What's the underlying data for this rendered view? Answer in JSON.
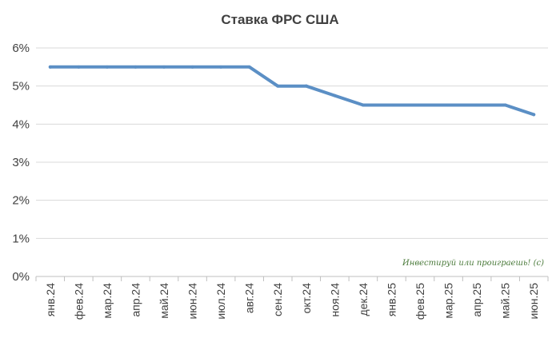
{
  "chart_data": {
    "type": "line",
    "title": "Ставка ФРС США",
    "xlabel": "",
    "ylabel": "",
    "ylim": [
      0,
      6
    ],
    "y_ticks": [
      "0%",
      "1%",
      "2%",
      "3%",
      "4%",
      "5%",
      "6%"
    ],
    "categories": [
      "янв.24",
      "фев.24",
      "мар.24",
      "апр.24",
      "май.24",
      "июн.24",
      "июл.24",
      "авг.24",
      "сен.24",
      "окт.24",
      "ноя.24",
      "дек.24",
      "янв.25",
      "фев.25",
      "мар.25",
      "апр.25",
      "май.25",
      "июн.25"
    ],
    "series": [
      {
        "name": "Ставка ФРС США",
        "color": "#5b8fc5",
        "values": [
          5.5,
          5.5,
          5.5,
          5.5,
          5.5,
          5.5,
          5.5,
          5.5,
          5.0,
          5.0,
          4.75,
          4.5,
          4.5,
          4.5,
          4.5,
          4.5,
          4.5,
          4.25
        ]
      }
    ],
    "grid": true,
    "annotation": "Инвестируй или проиграешь! (с)"
  }
}
